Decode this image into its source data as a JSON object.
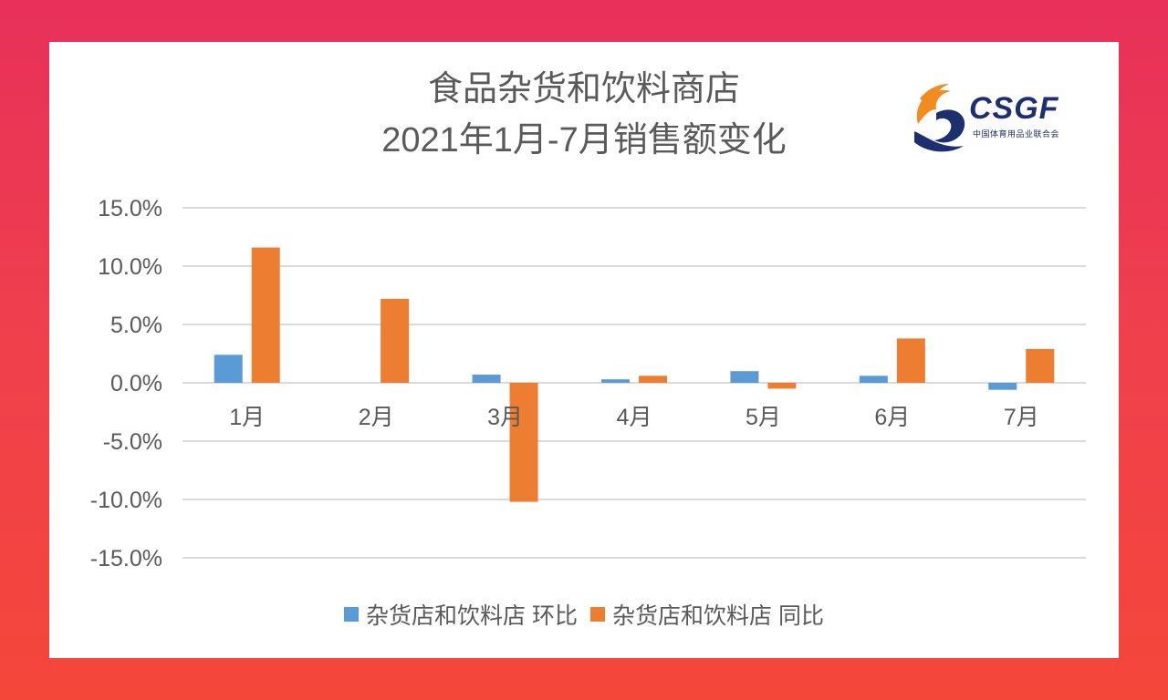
{
  "title_line1": "食品杂货和饮料商店",
  "title_line2": "2021年1月-7月销售额变化",
  "logo": {
    "wordmark": "CSGF",
    "subtitle": "中国体育用品业联合会"
  },
  "colors": {
    "mom": "#5b9bd5",
    "yoy": "#ed7d31",
    "grid": "#d9d9d9",
    "background": "#e8305a"
  },
  "chart_data": {
    "type": "bar",
    "categories": [
      "1月",
      "2月",
      "3月",
      "4月",
      "5月",
      "6月",
      "7月"
    ],
    "series": [
      {
        "name": "杂货店和饮料店 环比",
        "values": [
          2.4,
          0.0,
          0.7,
          0.3,
          1.0,
          0.6,
          -0.6
        ]
      },
      {
        "name": "杂货店和饮料店 同比",
        "values": [
          11.6,
          7.2,
          -10.2,
          0.6,
          -0.5,
          3.8,
          2.9
        ]
      }
    ],
    "ylim": [
      -15,
      15
    ],
    "yticks": [
      15,
      10,
      5,
      0,
      -5,
      -10,
      -15
    ],
    "ytick_labels": [
      "15.0%",
      "10.0%",
      "5.0%",
      "0.0%",
      "-5.0%",
      "-10.0%",
      "-15.0%"
    ],
    "grid": true,
    "legend_position": "bottom"
  }
}
